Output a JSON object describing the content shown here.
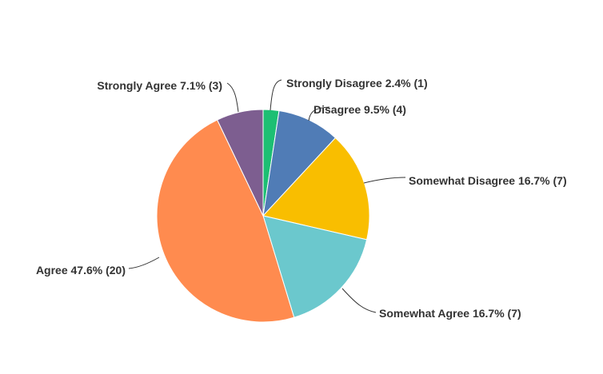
{
  "chart_data": {
    "type": "pie",
    "title": "",
    "start": "top",
    "direction": "clockwise",
    "slices": [
      {
        "label": "Strongly Disagree",
        "percent": 2.4,
        "count": 1,
        "display": "Strongly Disagree 2.4% (1)",
        "color": "#1dbf73"
      },
      {
        "label": "Disagree",
        "percent": 9.5,
        "count": 4,
        "display": "Disagree 9.5% (4)",
        "color": "#507cb6"
      },
      {
        "label": "Somewhat Disagree",
        "percent": 16.7,
        "count": 7,
        "display": "Somewhat Disagree 16.7% (7)",
        "color": "#f9be00"
      },
      {
        "label": "Somewhat Agree",
        "percent": 16.7,
        "count": 7,
        "display": "Somewhat Agree 16.7% (7)",
        "color": "#6bc8cd"
      },
      {
        "label": "Agree",
        "percent": 47.6,
        "count": 20,
        "display": "Agree 47.6% (20)",
        "color": "#ff8b4f"
      },
      {
        "label": "Strongly Agree",
        "percent": 7.1,
        "count": 3,
        "display": "Strongly Agree 7.1% (3)",
        "color": "#7d5e90"
      }
    ]
  }
}
